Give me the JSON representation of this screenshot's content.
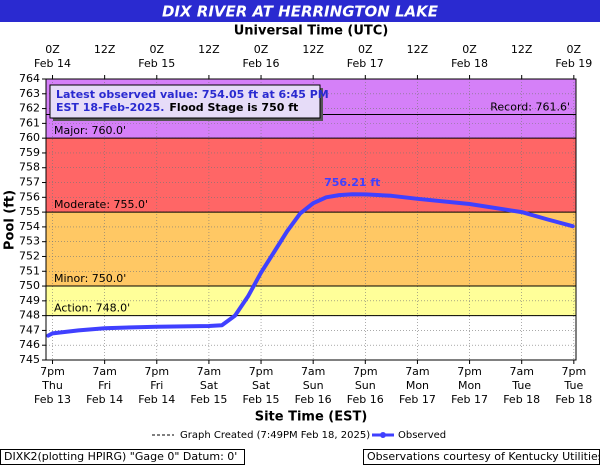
{
  "chart_data": {
    "type": "line",
    "title": "DIX RIVER AT HERRINGTON LAKE",
    "top_axis_label": "Universal Time (UTC)",
    "x_label": "Site Time (EST)",
    "y_label": "Pool (ft)",
    "xlim": [
      "2025-02-13T17:30",
      "2025-02-18T19:30"
    ],
    "ylim": [
      745,
      764
    ],
    "yticks": [
      745,
      746,
      747,
      748,
      749,
      750,
      751,
      752,
      753,
      754,
      755,
      756,
      757,
      758,
      759,
      760,
      761,
      762,
      763,
      764
    ],
    "xticks": [
      {
        "value": "2025-02-13T19:00",
        "label": [
          "7pm",
          "Thu",
          "Feb 13"
        ]
      },
      {
        "value": "2025-02-14T07:00",
        "label": [
          "7am",
          "Fri",
          "Feb 14"
        ]
      },
      {
        "value": "2025-02-14T19:00",
        "label": [
          "7pm",
          "Fri",
          "Feb 14"
        ]
      },
      {
        "value": "2025-02-15T07:00",
        "label": [
          "7am",
          "Sat",
          "Feb 15"
        ]
      },
      {
        "value": "2025-02-15T19:00",
        "label": [
          "7pm",
          "Sat",
          "Feb 15"
        ]
      },
      {
        "value": "2025-02-16T07:00",
        "label": [
          "7am",
          "Sun",
          "Feb 16"
        ]
      },
      {
        "value": "2025-02-16T19:00",
        "label": [
          "7pm",
          "Sun",
          "Feb 16"
        ]
      },
      {
        "value": "2025-02-17T07:00",
        "label": [
          "7am",
          "Mon",
          "Feb 17"
        ]
      },
      {
        "value": "2025-02-17T19:00",
        "label": [
          "7pm",
          "Mon",
          "Feb 17"
        ]
      },
      {
        "value": "2025-02-18T07:00",
        "label": [
          "7am",
          "Tue",
          "Feb 18"
        ]
      },
      {
        "value": "2025-02-18T19:00",
        "label": [
          "7pm",
          "Tue",
          "Feb 18"
        ]
      }
    ],
    "x2ticks": [
      {
        "value": "2025-02-13T19:00",
        "label": [
          "0Z",
          "Feb 14"
        ]
      },
      {
        "value": "2025-02-14T07:00",
        "label": [
          "12Z"
        ]
      },
      {
        "value": "2025-02-14T19:00",
        "label": [
          "0Z",
          "Feb 15"
        ]
      },
      {
        "value": "2025-02-15T07:00",
        "label": [
          "12Z"
        ]
      },
      {
        "value": "2025-02-15T19:00",
        "label": [
          "0Z",
          "Feb 16"
        ]
      },
      {
        "value": "2025-02-16T07:00",
        "label": [
          "12Z"
        ]
      },
      {
        "value": "2025-02-16T19:00",
        "label": [
          "0Z",
          "Feb 17"
        ]
      },
      {
        "value": "2025-02-17T07:00",
        "label": [
          "12Z"
        ]
      },
      {
        "value": "2025-02-17T19:00",
        "label": [
          "0Z",
          "Feb 18"
        ]
      },
      {
        "value": "2025-02-18T07:00",
        "label": [
          "12Z"
        ]
      },
      {
        "value": "2025-02-18T19:00",
        "label": [
          "0Z",
          "Feb 19"
        ]
      }
    ],
    "grid": true,
    "thresholds": [
      {
        "value": 748,
        "label": "Action: 748.0'",
        "color": "#ffff99"
      },
      {
        "value": 750,
        "label": "Minor: 750.0'",
        "color": "#ffc864"
      },
      {
        "value": 755,
        "label": "Moderate: 755.0'",
        "color": "#ff6666"
      },
      {
        "value": 760,
        "label": "Major: 760.0'",
        "color": "#d580f8"
      },
      {
        "value": 761.6,
        "label": "Record: 761.6'"
      }
    ],
    "x": [
      "2025-02-13T18:00",
      "2025-02-13T19:00",
      "2025-02-14T01:00",
      "2025-02-14T07:00",
      "2025-02-14T19:00",
      "2025-02-15T07:00",
      "2025-02-15T10:00",
      "2025-02-15T13:00",
      "2025-02-15T16:00",
      "2025-02-15T19:00",
      "2025-02-15T22:00",
      "2025-02-16T01:00",
      "2025-02-16T04:00",
      "2025-02-16T07:00",
      "2025-02-16T10:00",
      "2025-02-16T13:00",
      "2025-02-16T16:00",
      "2025-02-16T19:00",
      "2025-02-17T01:00",
      "2025-02-17T07:00",
      "2025-02-17T19:00",
      "2025-02-18T07:00",
      "2025-02-18T13:00",
      "2025-02-18T18:45"
    ],
    "series": [
      {
        "name": "Observed",
        "color": "#4040ff",
        "values": [
          746.65,
          746.8,
          747.0,
          747.15,
          747.25,
          747.3,
          747.35,
          748.0,
          749.3,
          750.9,
          752.3,
          753.7,
          754.9,
          755.6,
          756.0,
          756.15,
          756.21,
          756.2,
          756.1,
          755.9,
          755.55,
          755.0,
          754.5,
          754.05
        ]
      }
    ],
    "peak": {
      "x": "2025-02-16T16:00",
      "value": 756.21,
      "label": "756.21 ft"
    },
    "latest_note": [
      "Latest observed value: 754.05 ft at 6:45 PM",
      "EST 18-Feb-2025.",
      "Flood Stage is 750 ft"
    ],
    "created": "Graph Created (7:49PM Feb 18, 2025)",
    "footer_left": "DIXK2(plotting HPIRG) \"Gage 0\" Datum: 0'",
    "footer_right": "Observations courtesy of Kentucky Utilities"
  }
}
